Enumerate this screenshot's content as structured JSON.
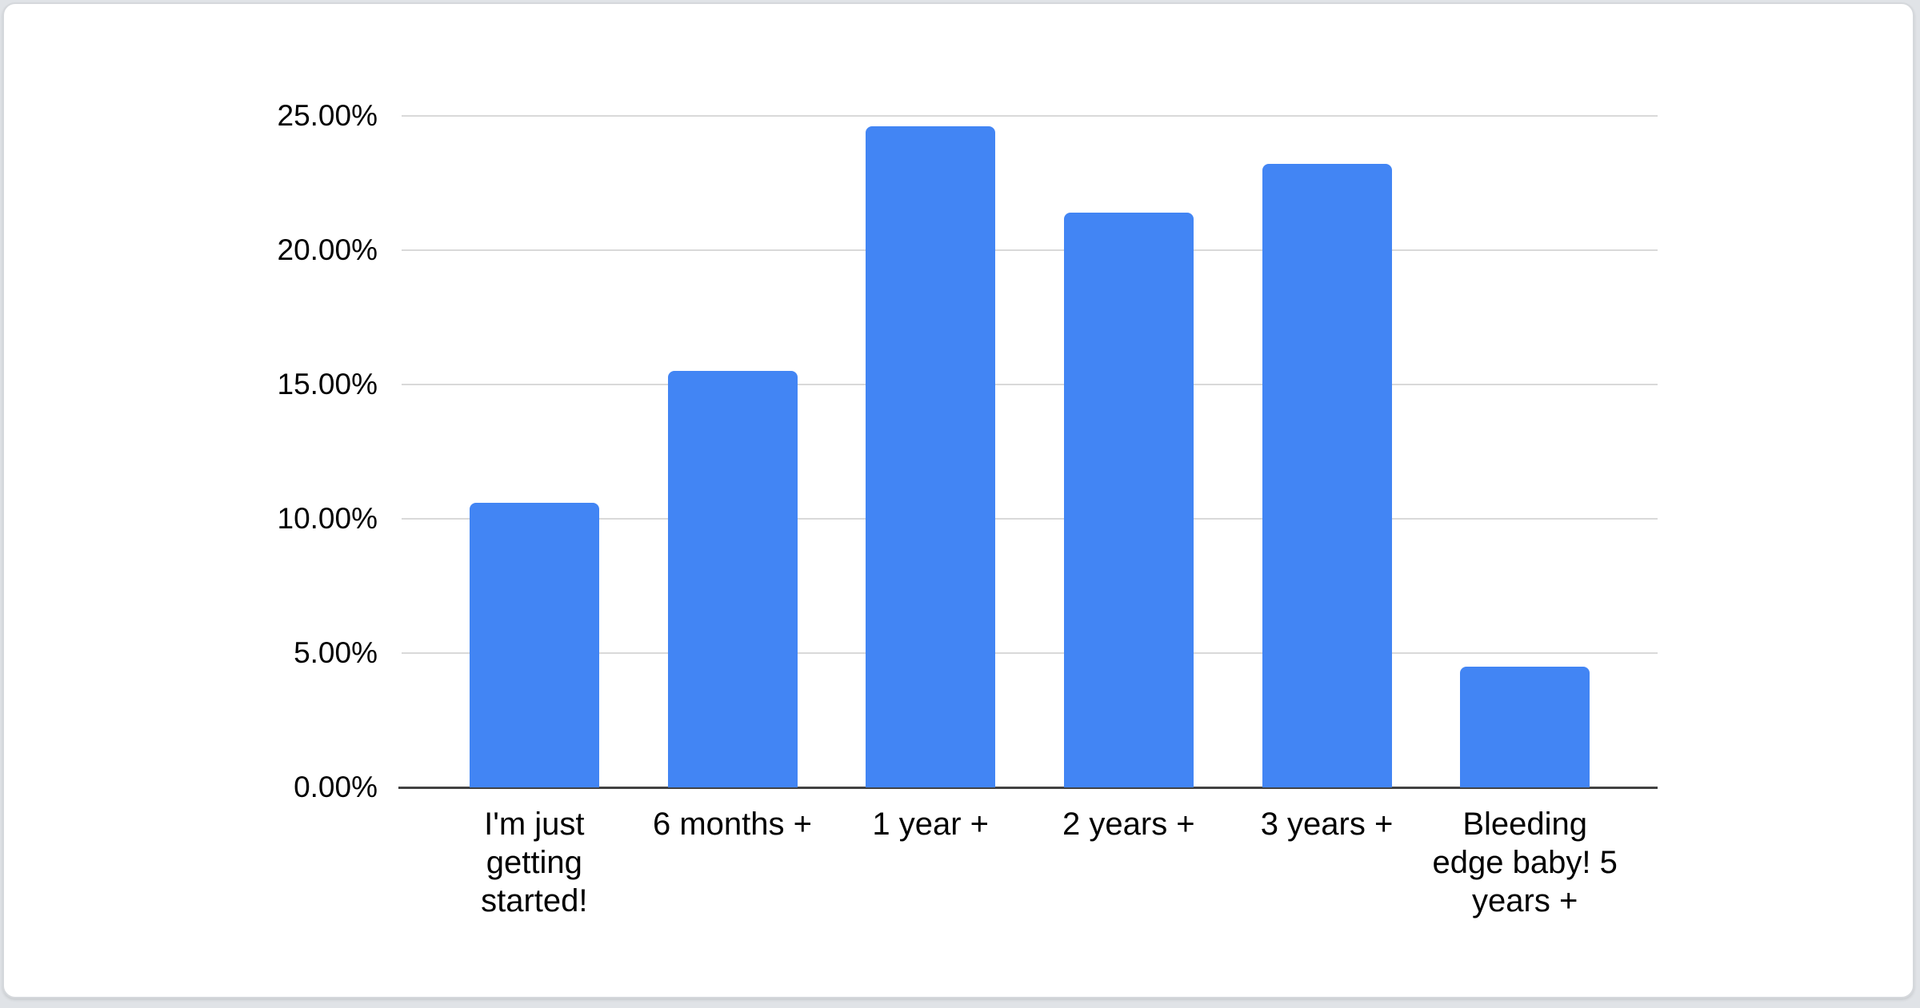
{
  "chart_data": {
    "type": "bar",
    "title": "",
    "xlabel": "",
    "ylabel": "",
    "categories": [
      "I'm just getting started!",
      "6 months +",
      "1 year +",
      "2 years +",
      "3 years +",
      "Bleeding edge baby! 5 years +"
    ],
    "values": [
      10.6,
      15.5,
      24.6,
      21.4,
      23.2,
      4.5
    ],
    "value_unit": "percent",
    "ylim": [
      0,
      25
    ],
    "y_ticks": [
      {
        "value": 0,
        "label": "0.00%"
      },
      {
        "value": 5,
        "label": "5.00%"
      },
      {
        "value": 10,
        "label": "10.00%"
      },
      {
        "value": 15,
        "label": "15.00%"
      },
      {
        "value": 20,
        "label": "20.00%"
      },
      {
        "value": 25,
        "label": "25.00%"
      }
    ],
    "grid": true,
    "legend_position": "none",
    "bar_color": "#4285f4"
  },
  "colors": {
    "bar": "#4285f4",
    "gridline": "#d9d9d9",
    "axis_line": "#424242",
    "label_text": "#000000",
    "card_background": "#ffffff",
    "card_border": "#d5d8dc",
    "page_background": "#e0e3e7"
  }
}
